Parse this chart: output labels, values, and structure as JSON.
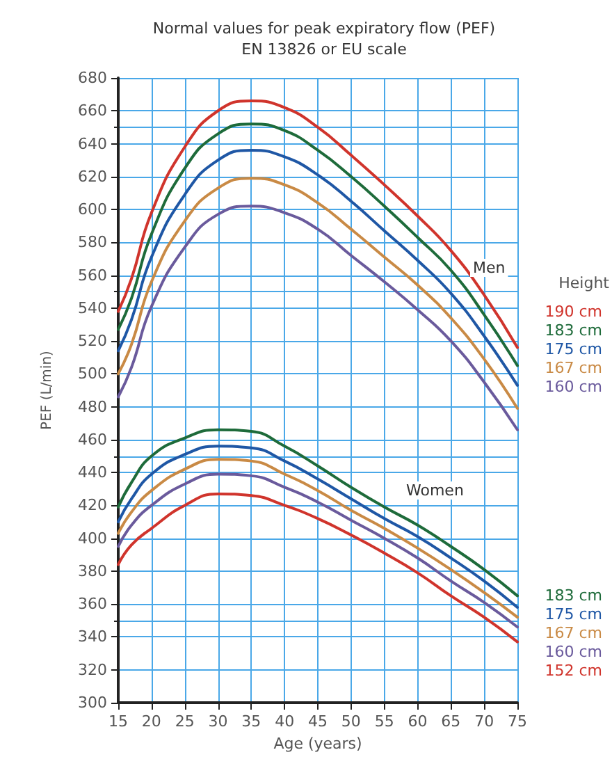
{
  "chart_data": {
    "type": "line",
    "title": "Normal values for peak expiratory flow (PEF)",
    "subtitle": "EN 13826 or EU scale",
    "xlabel": "Age (years)",
    "ylabel": "PEF (L/min)",
    "legend_title": "Height",
    "legend": "right",
    "grid": true,
    "marker": "none",
    "line_style": "solid",
    "x": [
      15,
      17,
      20,
      25,
      30,
      35,
      40,
      45,
      50,
      55,
      60,
      65,
      70,
      75
    ],
    "xlim": [
      15,
      75
    ],
    "xticks": [
      15,
      20,
      25,
      30,
      35,
      40,
      45,
      50,
      55,
      60,
      65,
      70,
      75
    ],
    "ylim": [
      300,
      680
    ],
    "yticks": [
      300,
      320,
      340,
      360,
      380,
      400,
      420,
      440,
      460,
      480,
      500,
      520,
      540,
      560,
      580,
      600,
      620,
      640,
      660,
      680
    ],
    "annotations": [
      "Men",
      "Women"
    ],
    "series": [
      {
        "name": "190 cm",
        "color": "#d0342c",
        "values": [
          538,
          558,
          598,
          638,
          660,
          666,
          662,
          650,
          633,
          615,
          596,
          575,
          548,
          516
        ]
      },
      {
        "name": "183 cm",
        "color": "#1e6b3a",
        "values": [
          527,
          546,
          585,
          625,
          646,
          652,
          648,
          636,
          620,
          602,
          583,
          563,
          536,
          505
        ]
      },
      {
        "name": "175 cm",
        "color": "#1f57a5",
        "values": [
          514,
          533,
          571,
          609,
          630,
          636,
          632,
          621,
          605,
          587,
          569,
          549,
          523,
          493
        ]
      },
      {
        "name": "167 cm",
        "color": "#c98a45",
        "values": [
          500,
          518,
          556,
          593,
          613,
          619,
          615,
          604,
          588,
          571,
          554,
          534,
          509,
          479
        ]
      },
      {
        "name": "160 cm",
        "color": "#6a5a9c",
        "values": [
          486,
          504,
          541,
          577,
          597,
          602,
          598,
          588,
          572,
          556,
          539,
          520,
          495,
          466
        ]
      },
      {
        "name": "183 cm",
        "color": "#1e6b3a",
        "values": [
          419,
          434,
          450,
          461,
          466,
          465,
          456,
          444,
          431,
          419,
          408,
          395,
          381,
          365
        ]
      },
      {
        "name": "175 cm",
        "color": "#1f57a5",
        "values": [
          410,
          424,
          439,
          451,
          456,
          455,
          447,
          436,
          424,
          412,
          401,
          388,
          374,
          358
        ]
      },
      {
        "name": "167 cm",
        "color": "#c98a45",
        "values": [
          403,
          416,
          429,
          442,
          448,
          447,
          439,
          429,
          417,
          406,
          394,
          381,
          367,
          352
        ]
      },
      {
        "name": "160 cm",
        "color": "#6a5a9c",
        "values": [
          395,
          408,
          420,
          433,
          439,
          438,
          431,
          422,
          411,
          400,
          388,
          374,
          361,
          346
        ]
      },
      {
        "name": "152 cm",
        "color": "#d0342c",
        "values": [
          384,
          396,
          406,
          420,
          427,
          426,
          420,
          412,
          402,
          391,
          379,
          365,
          352,
          337
        ]
      }
    ]
  }
}
